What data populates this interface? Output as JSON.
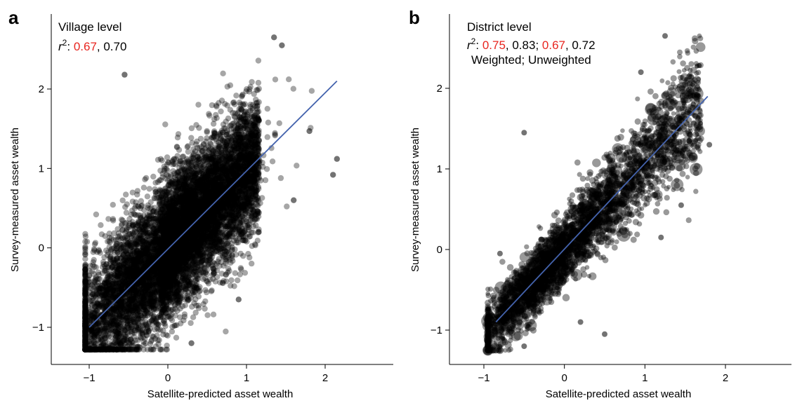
{
  "panel_labels": [
    "a",
    "b"
  ],
  "chart_data": [
    {
      "type": "scatter",
      "panel": "a",
      "title": "Village level",
      "r2_prefix": "r",
      "r2_sup": "2",
      "r2_colon": ": ",
      "r2_values": [
        {
          "text": "0.67",
          "color": "#e8251f"
        },
        {
          "text": ", 0.70",
          "color": "#000000"
        }
      ],
      "subtitle": "",
      "xlabel": "Satellite-predicted asset wealth",
      "ylabel": "Survey-measured asset wealth",
      "xlim": [
        -1.5,
        2.5
      ],
      "ylim": [
        -1.3,
        2.65
      ],
      "xticks": [
        -1,
        0,
        1,
        2
      ],
      "yticks": [
        -1,
        0,
        1,
        2
      ],
      "xtick_labels": [
        "−1",
        "0",
        "1",
        "2"
      ],
      "ytick_labels": [
        "−1",
        "0",
        "1",
        "2"
      ],
      "fit_line": {
        "x": [
          -1.0,
          2.15
        ],
        "y": [
          -1.0,
          2.1
        ],
        "color": "#4463ad"
      },
      "point_color": "#000000",
      "point_opacity": 0.35,
      "point_count_estimate": 12000,
      "points_sample": [
        {
          "x": -0.55,
          "y": 2.18
        },
        {
          "x": 1.35,
          "y": 2.65
        },
        {
          "x": 1.45,
          "y": 2.55
        },
        {
          "x": 2.15,
          "y": 1.12
        },
        {
          "x": 2.1,
          "y": 0.92
        },
        {
          "x": 1.8,
          "y": 1.47
        },
        {
          "x": -1.0,
          "y": -0.35
        },
        {
          "x": -0.95,
          "y": -0.98
        },
        {
          "x": -0.6,
          "y": -1.22
        },
        {
          "x": 0.3,
          "y": -1.2
        },
        {
          "x": 0.9,
          "y": -0.65
        },
        {
          "x": 1.6,
          "y": 0.6
        }
      ],
      "grid": false,
      "legend": "none"
    },
    {
      "type": "scatter",
      "panel": "b",
      "title": "District level",
      "r2_prefix": "r",
      "r2_sup": "2",
      "r2_colon": ": ",
      "r2_values": [
        {
          "text": "0.75",
          "color": "#e8251f"
        },
        {
          "text": ", 0.83; ",
          "color": "#000000"
        },
        {
          "text": "0.67",
          "color": "#e8251f"
        },
        {
          "text": ", 0.72",
          "color": "#000000"
        }
      ],
      "subtitle": "Weighted; Unweighted",
      "xlabel": "Satellite-predicted asset wealth",
      "ylabel": "Survey-measured asset wealth",
      "xlim": [
        -1.15,
        2.3
      ],
      "ylim": [
        -1.45,
        2.75
      ],
      "xticks": [
        -1,
        0,
        1,
        2
      ],
      "yticks": [
        -1,
        0,
        1,
        2
      ],
      "xtick_labels": [
        "−1",
        "0",
        "1",
        "2"
      ],
      "ytick_labels": [
        "−1",
        "0",
        "1",
        "2"
      ],
      "fit_line": {
        "x": [
          -0.85,
          1.78
        ],
        "y": [
          -0.9,
          1.9
        ],
        "color": "#4463ad"
      },
      "point_color": "#000000",
      "point_opacity": 0.4,
      "point_count_estimate": 4000,
      "points_sample": [
        {
          "x": 1.25,
          "y": 2.65
        },
        {
          "x": 0.95,
          "y": 2.2
        },
        {
          "x": 1.55,
          "y": 2.15
        },
        {
          "x": 1.8,
          "y": 1.3
        },
        {
          "x": 1.55,
          "y": 1.35
        },
        {
          "x": 1.45,
          "y": 0.55
        },
        {
          "x": -0.5,
          "y": 1.45
        },
        {
          "x": 0.5,
          "y": -1.05
        },
        {
          "x": 0.2,
          "y": -0.9
        },
        {
          "x": -0.5,
          "y": -1.2
        },
        {
          "x": 1.2,
          "y": 0.15
        },
        {
          "x": -0.8,
          "y": -0.05
        }
      ],
      "grid": false,
      "legend": "none"
    }
  ]
}
